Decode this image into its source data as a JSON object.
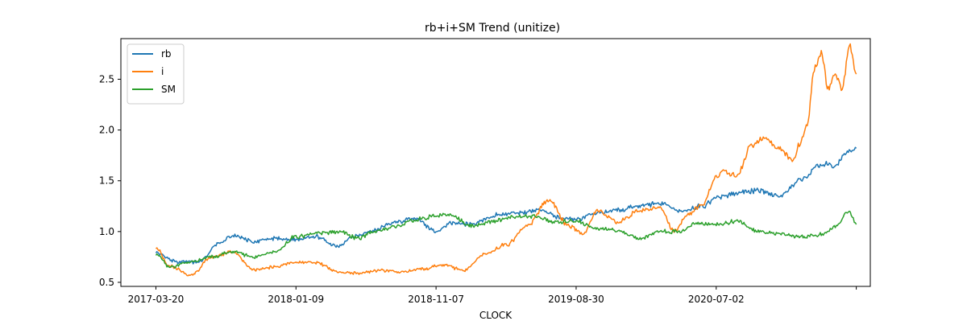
{
  "chart_data": {
    "type": "line",
    "title": "rb+i+SM Trend (unitize)",
    "xlabel": "CLOCK",
    "ylabel": "",
    "x_tick_labels": [
      "2017-03-20",
      "2018-01-09",
      "2018-11-07",
      "2019-08-30",
      "2020-07-02",
      ""
    ],
    "x_tick_positions": [
      0,
      1,
      2,
      3,
      4,
      5
    ],
    "xlim": [
      -0.25,
      5.1
    ],
    "y_ticks": [
      0.5,
      1.0,
      1.5,
      2.0,
      2.5
    ],
    "y_tick_labels": [
      "0.5",
      "1.0",
      "1.5",
      "2.0",
      "2.5"
    ],
    "ylim": [
      0.46,
      2.9
    ],
    "legend_position": "upper-left",
    "grid": false,
    "series": [
      {
        "name": "rb",
        "color": "#1f77b4",
        "x": [
          0,
          0.15,
          0.3,
          0.45,
          0.55,
          0.7,
          0.85,
          1.0,
          1.15,
          1.3,
          1.4,
          1.55,
          1.7,
          1.85,
          2.0,
          2.1,
          2.25,
          2.45,
          2.6,
          2.75,
          2.9,
          3.0,
          3.15,
          3.3,
          3.45,
          3.6,
          3.75,
          3.9,
          4.0,
          4.15,
          4.3,
          4.45,
          4.6,
          4.75,
          4.85,
          4.95,
          5.0
        ],
        "values": [
          0.79,
          0.7,
          0.7,
          0.88,
          0.96,
          0.9,
          0.93,
          0.92,
          0.95,
          0.85,
          0.95,
          1.01,
          1.09,
          1.13,
          1.0,
          1.08,
          1.07,
          1.17,
          1.18,
          1.21,
          1.13,
          1.12,
          1.18,
          1.21,
          1.25,
          1.28,
          1.2,
          1.25,
          1.33,
          1.38,
          1.4,
          1.35,
          1.5,
          1.67,
          1.65,
          1.8,
          1.82
        ]
      },
      {
        "name": "i",
        "color": "#ff7f0e",
        "x": [
          0,
          0.1,
          0.25,
          0.4,
          0.55,
          0.7,
          0.85,
          1.0,
          1.15,
          1.3,
          1.45,
          1.6,
          1.75,
          1.9,
          2.05,
          2.2,
          2.35,
          2.5,
          2.65,
          2.8,
          2.95,
          3.05,
          3.15,
          3.3,
          3.45,
          3.6,
          3.7,
          3.8,
          3.9,
          4.0,
          4.05,
          4.15,
          4.25,
          4.35,
          4.45,
          4.55,
          4.6,
          4.65,
          4.7,
          4.75,
          4.8,
          4.85,
          4.9,
          4.95,
          5.0
        ],
        "values": [
          0.84,
          0.66,
          0.57,
          0.75,
          0.8,
          0.62,
          0.65,
          0.7,
          0.69,
          0.6,
          0.59,
          0.62,
          0.6,
          0.63,
          0.67,
          0.62,
          0.78,
          0.87,
          1.05,
          1.31,
          1.05,
          0.98,
          1.2,
          1.1,
          1.2,
          1.24,
          1.0,
          1.17,
          1.27,
          1.53,
          1.6,
          1.55,
          1.85,
          1.92,
          1.82,
          1.7,
          1.87,
          2.05,
          2.6,
          2.75,
          2.4,
          2.55,
          2.4,
          2.85,
          2.55
        ]
      },
      {
        "name": "SM",
        "color": "#2ca02c",
        "x": [
          0,
          0.1,
          0.25,
          0.4,
          0.55,
          0.7,
          0.85,
          1.0,
          1.15,
          1.3,
          1.45,
          1.55,
          1.7,
          1.85,
          2.0,
          2.1,
          2.25,
          2.4,
          2.55,
          2.7,
          2.85,
          3.0,
          3.15,
          3.3,
          3.45,
          3.6,
          3.75,
          3.85,
          4.0,
          4.15,
          4.3,
          4.45,
          4.6,
          4.75,
          4.85,
          4.95,
          5.0
        ],
        "values": [
          0.78,
          0.65,
          0.7,
          0.75,
          0.8,
          0.75,
          0.8,
          0.95,
          0.98,
          1.0,
          0.93,
          1.0,
          1.04,
          1.12,
          1.15,
          1.17,
          1.05,
          1.1,
          1.15,
          1.15,
          1.1,
          1.1,
          1.03,
          1.01,
          0.93,
          1.0,
          1.0,
          1.08,
          1.07,
          1.1,
          1.0,
          0.98,
          0.95,
          0.97,
          1.04,
          1.2,
          1.07
        ]
      }
    ]
  }
}
